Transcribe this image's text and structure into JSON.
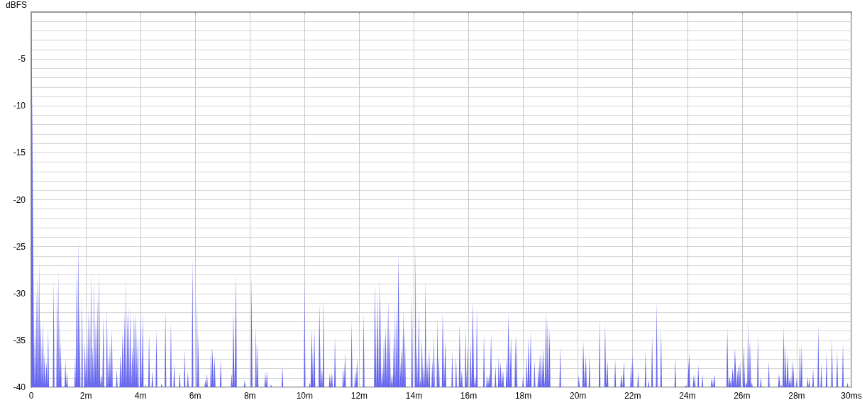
{
  "chart_data": {
    "type": "area",
    "ylabel": "dBFS",
    "color": "#6666ee",
    "grid": true,
    "xlim": [
      0,
      30
    ],
    "ylim": [
      -40,
      0
    ],
    "xticks": [
      {
        "value": 0,
        "label": "0"
      },
      {
        "value": 2,
        "label": "2m"
      },
      {
        "value": 4,
        "label": "4m"
      },
      {
        "value": 6,
        "label": "6m"
      },
      {
        "value": 8,
        "label": "8m"
      },
      {
        "value": 10,
        "label": "10m"
      },
      {
        "value": 12,
        "label": "12m"
      },
      {
        "value": 14,
        "label": "14m"
      },
      {
        "value": 16,
        "label": "16m"
      },
      {
        "value": 18,
        "label": "18m"
      },
      {
        "value": 20,
        "label": "20m"
      },
      {
        "value": 22,
        "label": "22m"
      },
      {
        "value": 24,
        "label": "24m"
      },
      {
        "value": 26,
        "label": "26m"
      },
      {
        "value": 28,
        "label": "28m"
      },
      {
        "value": 30,
        "label": "30ms"
      }
    ],
    "yticks": [
      -40,
      {
        "value": -39,
        "label": null
      },
      {
        "value": -38,
        "label": null
      },
      {
        "value": -37,
        "label": null
      },
      {
        "value": -36,
        "label": null
      },
      -35,
      {
        "value": -34,
        "label": null
      },
      {
        "value": -33,
        "label": null
      },
      {
        "value": -32,
        "label": null
      },
      {
        "value": -31,
        "label": null
      },
      -30,
      {
        "value": -29,
        "label": null
      },
      {
        "value": -28,
        "label": null
      },
      {
        "value": -27,
        "label": null
      },
      {
        "value": -26,
        "label": null
      },
      -25,
      {
        "value": -24,
        "label": null
      },
      {
        "value": -23,
        "label": null
      },
      {
        "value": -22,
        "label": null
      },
      {
        "value": -21,
        "label": null
      },
      -20,
      {
        "value": -19,
        "label": null
      },
      {
        "value": -18,
        "label": null
      },
      {
        "value": -17,
        "label": null
      },
      {
        "value": -16,
        "label": null
      },
      -15,
      {
        "value": -14,
        "label": null
      },
      {
        "value": -13,
        "label": null
      },
      {
        "value": -12,
        "label": null
      },
      {
        "value": -11,
        "label": null
      },
      -10,
      {
        "value": -9,
        "label": null
      },
      {
        "value": -8,
        "label": null
      },
      {
        "value": -7,
        "label": null
      },
      {
        "value": -6,
        "label": null
      },
      -5,
      {
        "value": -4,
        "label": null
      },
      {
        "value": -3,
        "label": null
      },
      {
        "value": -2,
        "label": null
      },
      {
        "value": -1,
        "label": null
      },
      {
        "value": 0,
        "label": null
      }
    ],
    "x": [
      0,
      0.04,
      0.08,
      0.11,
      0.13,
      0.16,
      0.19,
      0.21,
      0.23,
      0.26,
      0.29,
      0.32,
      0.35,
      0.39,
      0.43,
      0.46,
      0.48,
      0.52,
      0.56,
      0.59,
      0.62,
      0.65,
      0.79,
      0.82,
      0.85,
      0.92,
      0.95,
      0.97,
      0.99,
      1.01,
      1.04,
      1.06,
      1.08,
      1.11,
      1.22,
      1.25,
      1.28,
      1.31,
      1.34,
      1.58,
      1.61,
      1.63,
      1.66,
      1.69,
      1.72,
      1.75,
      1.77,
      1.8,
      1.83,
      1.86,
      1.89,
      1.93,
      1.96,
      2.0,
      2.03,
      2.06,
      2.08,
      2.11,
      2.13,
      2.16,
      2.19,
      2.22,
      2.25,
      2.28,
      2.3,
      2.33,
      2.36,
      2.39,
      2.42,
      2.45,
      2.48,
      2.52,
      2.56,
      2.6,
      2.64,
      2.67,
      2.74,
      2.77,
      2.8,
      2.82,
      2.85,
      2.88,
      2.91,
      2.95,
      2.98,
      3.1,
      3.13,
      3.16,
      3.23,
      3.26,
      3.3,
      3.34,
      3.38,
      3.41,
      3.44,
      3.46,
      3.49,
      3.52,
      3.55,
      3.57,
      3.6,
      3.62,
      3.66,
      3.7,
      3.73,
      3.76,
      3.8,
      3.83,
      3.87,
      3.9,
      3.93,
      3.97,
      4.0,
      4.04,
      4.08,
      4.11,
      4.16,
      4.19,
      4.22,
      4.28,
      4.31,
      4.34,
      4.4,
      4.43,
      4.46,
      4.55,
      4.58,
      4.61,
      4.74,
      4.77,
      4.8,
      4.88,
      4.91,
      4.94,
      5.08,
      5.11,
      5.14,
      5.2,
      5.23,
      5.26,
      5.4,
      5.43,
      5.46,
      5.58,
      5.61,
      5.64,
      5.7,
      5.73,
      5.76,
      5.87,
      5.9,
      5.93,
      6.04,
      6.07,
      6.09,
      6.11,
      6.14,
      6.34,
      6.37,
      6.4,
      6.43,
      6.46,
      6.55,
      6.58,
      6.6,
      6.63,
      6.67,
      6.71,
      6.74,
      6.9,
      6.93,
      6.96,
      7.3,
      7.33,
      7.36,
      7.39,
      7.44,
      7.49,
      7.52,
      7.78,
      7.81,
      7.84,
      8.03,
      8.06,
      8.09,
      8.19,
      8.22,
      8.25,
      8.28,
      8.31,
      8.53,
      8.56,
      8.59,
      8.62,
      8.65,
      8.74,
      8.77,
      8.8,
      9.16,
      9.19,
      9.22,
      9.97,
      10.0,
      10.03,
      10.16,
      10.19,
      10.22,
      10.26,
      10.31,
      10.36,
      10.39,
      10.51,
      10.54,
      10.59,
      10.64,
      10.66,
      10.69,
      10.72,
      10.89,
      10.92,
      10.96,
      11.0,
      11.03,
      11.08,
      11.11,
      11.14,
      11.38,
      11.41,
      11.44,
      11.48,
      11.51,
      11.69,
      11.72,
      11.75,
      11.82,
      11.85,
      11.88,
      11.92,
      11.95,
      12.13,
      12.16,
      12.19,
      12.54,
      12.57,
      12.62,
      12.67,
      12.7,
      12.73,
      12.75,
      12.77,
      12.8,
      12.84,
      12.87,
      12.9,
      12.93,
      12.96,
      13.01,
      13.06,
      13.08,
      13.11,
      13.15,
      13.2,
      13.23,
      13.27,
      13.29,
      13.31,
      13.33,
      13.36,
      13.39,
      13.43,
      13.48,
      13.54,
      13.57,
      13.61,
      13.64,
      13.67,
      13.7,
      13.9,
      13.93,
      13.96,
      14.03,
      14.06,
      14.08,
      14.11,
      14.14,
      14.18,
      14.21,
      14.24,
      14.26,
      14.29,
      14.33,
      14.37,
      14.39,
      14.42,
      14.45,
      14.48,
      14.52,
      14.56,
      14.59,
      14.64,
      14.67,
      14.7,
      14.73,
      14.76,
      14.83,
      14.86,
      14.88,
      14.91,
      14.94,
      15.02,
      15.05,
      15.1,
      15.15,
      15.18,
      15.37,
      15.4,
      15.43,
      15.51,
      15.54,
      15.57,
      15.64,
      15.67,
      15.71,
      15.75,
      15.78,
      15.86,
      15.89,
      15.92,
      15.95,
      15.98,
      16.04,
      16.07,
      16.11,
      16.15,
      16.2,
      16.24,
      16.27,
      16.3,
      16.33,
      16.53,
      16.56,
      16.59,
      16.64,
      16.67,
      16.71,
      16.75,
      16.78,
      16.82,
      16.85,
      16.95,
      16.98,
      17.01,
      17.07,
      17.1,
      17.13,
      17.17,
      17.21,
      17.26,
      17.29,
      17.36,
      17.39,
      17.42,
      17.45,
      17.5,
      17.55,
      17.58,
      17.68,
      17.71,
      17.73,
      17.75,
      17.78,
      17.96,
      17.99,
      18.02,
      18.09,
      18.12,
      18.15,
      18.19,
      18.23,
      18.27,
      18.3,
      18.38,
      18.41,
      18.44,
      18.52,
      18.55,
      18.57,
      18.59,
      18.61,
      18.64,
      18.68,
      18.72,
      18.78,
      18.84,
      18.86,
      18.89,
      18.92,
      18.96,
      18.99,
      19.32,
      19.35,
      19.38,
      20.0,
      20.03,
      20.06,
      20.16,
      20.19,
      20.24,
      20.29,
      20.32,
      20.39,
      20.42,
      20.45,
      20.76,
      20.79,
      20.82,
      20.96,
      20.99,
      21.03,
      21.08,
      21.11,
      21.33,
      21.36,
      21.39,
      21.55,
      21.58,
      21.63,
      21.68,
      21.71,
      21.91,
      21.94,
      21.97,
      22.0,
      22.03,
      22.17,
      22.2,
      22.23,
      22.44,
      22.47,
      22.5,
      22.55,
      22.58,
      22.61,
      22.68,
      22.71,
      22.74,
      22.85,
      22.88,
      22.91,
      23.01,
      23.04,
      23.07,
      23.53,
      23.56,
      23.59,
      23.91,
      23.94,
      24.0,
      24.07,
      24.1,
      24.2,
      24.23,
      24.25,
      24.27,
      24.3,
      24.37,
      24.4,
      24.43,
      24.52,
      24.55,
      24.58,
      24.86,
      24.89,
      24.94,
      24.99,
      25.02,
      25.43,
      25.46,
      25.5,
      25.55,
      25.6,
      25.66,
      25.7,
      25.74,
      25.8,
      25.86,
      25.89,
      25.93,
      25.96,
      26.03,
      26.06,
      26.11,
      26.17,
      26.19,
      26.22,
      26.24,
      26.27,
      26.29,
      26.31,
      26.33,
      26.36,
      26.39,
      26.55,
      26.58,
      26.61,
      26.66,
      26.69,
      26.72,
      26.95,
      26.98,
      27.01,
      27.32,
      27.35,
      27.4,
      27.44,
      27.48,
      27.53,
      27.55,
      27.58,
      27.62,
      27.67,
      27.71,
      27.75,
      27.8,
      27.84,
      27.86,
      27.88,
      27.91,
      27.97,
      28.0,
      28.03,
      28.09,
      28.12,
      28.15,
      28.18,
      28.21,
      28.37,
      28.4,
      28.43,
      28.46,
      28.49,
      28.57,
      28.6,
      28.63,
      28.76,
      28.79,
      28.82,
      28.87,
      28.9,
      28.93,
      29.06,
      29.09,
      29.12,
      29.26,
      29.29,
      29.32,
      29.45,
      29.48,
      29.51,
      29.66,
      29.69,
      29.72,
      29.83,
      29.86,
      29.89
    ],
    "values": [
      0,
      -12.2,
      -28.9,
      -40,
      -33.6,
      -40,
      -29.5,
      -40,
      -27.6,
      -40,
      -26.3,
      -40,
      -32.5,
      -40,
      -33.0,
      -40,
      -36.3,
      -40,
      -37.2,
      -40,
      -33.8,
      -40,
      -40,
      -28.7,
      -40,
      -40,
      -29.1,
      -40,
      -27.2,
      -40,
      -32.5,
      -40,
      -35.3,
      -40,
      -40,
      -37.0,
      -40,
      -38.3,
      -40,
      -40,
      -36.5,
      -40,
      -27.4,
      -40,
      -24.1,
      -40,
      -30.9,
      -40,
      -40,
      -30.6,
      -40,
      -40,
      -35.2,
      -40,
      -35.3,
      -40,
      -31.5,
      -40,
      -32.2,
      -40,
      -27.8,
      -40,
      -35.6,
      -40,
      -28.2,
      -40,
      -33.0,
      -40,
      -30.5,
      -40,
      -27.7,
      -40,
      -38.6,
      -40,
      -32.4,
      -40,
      -40,
      -31.6,
      -40,
      -36.7,
      -40,
      -35.3,
      -40,
      -33.8,
      -40,
      -40,
      -38.1,
      -40,
      -40,
      -36.5,
      -40,
      -34.2,
      -40,
      -31.9,
      -40,
      -28.2,
      -40,
      -31.9,
      -40,
      -31.2,
      -40,
      -31.3,
      -40,
      -35.7,
      -40,
      -31.9,
      -40,
      -31.7,
      -40,
      -34.6,
      -40,
      -40,
      -31.9,
      -40,
      -32.2,
      -40,
      -40,
      -39.7,
      -40,
      -40,
      -34.2,
      -40,
      -40,
      -38.2,
      -40,
      -40,
      -33.8,
      -40,
      -40,
      -39.6,
      -40,
      -40,
      -31.6,
      -40,
      -40,
      -33.0,
      -40,
      -40,
      -37.5,
      -40,
      -40,
      -38.3,
      -40,
      -40,
      -35.9,
      -40,
      -40,
      -38.3,
      -40,
      -40,
      -26.2,
      -40,
      -40,
      -30.4,
      -40,
      -34.4,
      -40,
      -40,
      -39.2,
      -40,
      -38.5,
      -40,
      -40,
      -35.8,
      -40,
      -35.7,
      -40,
      -36.7,
      -40,
      -40,
      -37.0,
      -40,
      -40,
      -38.5,
      -40,
      -31.9,
      -40,
      -27.8,
      -40,
      -40,
      -39.2,
      -40,
      -40,
      -28.2,
      -40,
      -40,
      -33.5,
      -40,
      -35.3,
      -40,
      -40,
      -38.4,
      -40,
      -38.2,
      -40,
      -40,
      -39.7,
      -40,
      -40,
      -37.7,
      -40,
      -40,
      -28.5,
      -40,
      -40,
      -39.5,
      -40,
      -33.8,
      -40,
      -33.9,
      -40,
      -40,
      -31.1,
      -40,
      -38.0,
      -40,
      -30.6,
      -40,
      -40,
      -38.5,
      -40,
      -38.4,
      -40,
      -40,
      -34.6,
      -40,
      -40,
      -37.9,
      -40,
      -36.3,
      -40,
      -40,
      -32.9,
      -40,
      -40,
      -38.2,
      -40,
      -36.9,
      -40,
      -40,
      -32.1,
      -40,
      -40,
      -28.9,
      -40,
      -30.4,
      -40,
      -28.2,
      -40,
      -30.2,
      -40,
      -37.7,
      -40,
      -34.5,
      -40,
      -33.6,
      -40,
      -30.7,
      -40,
      -33.4,
      -40,
      -38.6,
      -40,
      -33.9,
      -40,
      -31.0,
      -40,
      -31.7,
      -40,
      -25.7,
      -40,
      -35.9,
      -40,
      -31.7,
      -40,
      -33.9,
      -40,
      -40,
      -30.2,
      -40,
      -40,
      -24.9,
      -40,
      -35.8,
      -40,
      -31.6,
      -40,
      -39.1,
      -40,
      -34.8,
      -40,
      -37.5,
      -40,
      -28.4,
      -40,
      -37.0,
      -40,
      -35.9,
      -40,
      -40,
      -37.0,
      -40,
      -34.3,
      -40,
      -40,
      -32.4,
      -40,
      -36.4,
      -40,
      -40,
      -31.9,
      -40,
      -35.0,
      -40,
      -40,
      -36.1,
      -40,
      -40,
      -36.7,
      -40,
      -40,
      -33.1,
      -40,
      -38.2,
      -40,
      -40,
      -33.8,
      -40,
      -35.4,
      -40,
      -40,
      -35.2,
      -40,
      -30.8,
      -40,
      -38.8,
      -40,
      -31.5,
      -40,
      -40,
      -34.3,
      -40,
      -40,
      -38.7,
      -40,
      -38.5,
      -40,
      -34.2,
      -40,
      -40,
      -37.7,
      -40,
      -40,
      -36.7,
      -40,
      -37.3,
      -40,
      -38.2,
      -40,
      -40,
      -36.8,
      -40,
      -32.0,
      -40,
      -34.6,
      -40,
      -40,
      -34.5,
      -40,
      -34.4,
      -40,
      -40,
      -38.7,
      -40,
      -40,
      -36.7,
      -40,
      -34.7,
      -40,
      -34.0,
      -40,
      -40,
      -37.1,
      -40,
      -40,
      -37.7,
      -40,
      -36.5,
      -40,
      -36.1,
      -40,
      -35.9,
      -40,
      -31.9,
      -40,
      -32.6,
      -40,
      -33.7,
      -40,
      -40,
      -35.7,
      -40,
      -40,
      -38.7,
      -40,
      -40,
      -35.0,
      -40,
      -36.6,
      -40,
      -40,
      -36.6,
      -40,
      -40,
      -32.6,
      -40,
      -40,
      -33.1,
      -40,
      -37.1,
      -40,
      -40,
      -37.0,
      -40,
      -40,
      -38.6,
      -40,
      -37.2,
      -40,
      -40,
      -37.3,
      -40,
      -36.5,
      -40,
      -40,
      -38.3,
      -40,
      -40,
      -36.1,
      -40,
      -40,
      -39.2,
      -40,
      -40,
      -34.5,
      -40,
      -40,
      -30.8,
      -40,
      -40,
      -33.7,
      -40,
      -40,
      -36.9,
      -40,
      -40,
      -39.8,
      -40,
      -36.3,
      -40,
      -40,
      -38.7,
      -40,
      -38.5,
      -40,
      -40,
      -37.6,
      -40,
      -40,
      -38.6,
      -40,
      -40,
      -39.0,
      -40,
      -38.6,
      -40,
      -40,
      -33.6,
      -40,
      -38.9,
      -40,
      -37.9,
      -40,
      -35.8,
      -40,
      -37.6,
      -40,
      -37.2,
      -40,
      -40,
      -35.6,
      -40,
      -39.4,
      -40,
      -32.7,
      -40,
      -35.0,
      -40,
      -35.0,
      -40,
      -39.5,
      -40,
      -40,
      -34.4,
      -40,
      -40,
      -38.9,
      -40,
      -40,
      -37.2,
      -40,
      -40,
      -38.5,
      -40,
      -39.8,
      -40,
      -33.5,
      -40,
      -35.6,
      -40,
      -36.5,
      -40,
      -38.9,
      -40,
      -37.0,
      -40,
      -37.6,
      -40,
      -40,
      -38.9,
      -40,
      -40,
      -35.4,
      -40,
      -35.4,
      -40,
      -40,
      -38.9,
      -40,
      -39.0,
      -40,
      -40,
      -38.0,
      -40,
      -40,
      -33.3,
      -40,
      -40,
      -37.5,
      -40,
      -40,
      -36.2,
      -40,
      -40,
      -34.8,
      -40,
      -40,
      -36.2,
      -40,
      -40,
      -35.2,
      -40,
      -40,
      -39.5,
      -40
    ]
  }
}
